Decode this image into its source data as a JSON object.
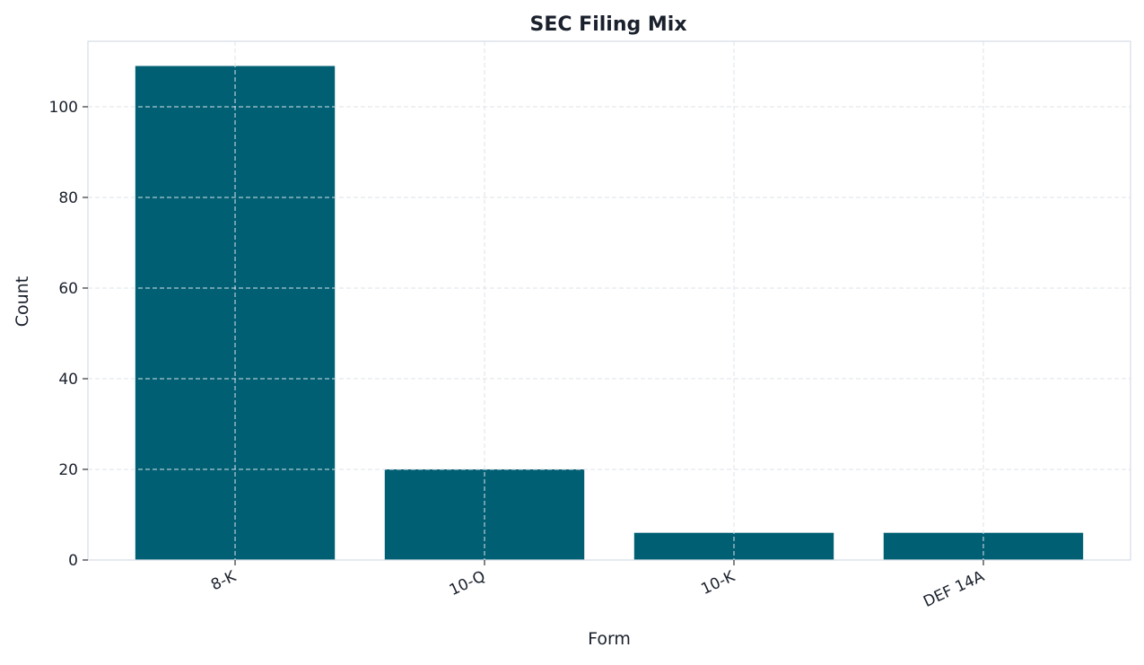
{
  "chart_data": {
    "type": "bar",
    "title": "SEC Filing Mix",
    "xlabel": "Form",
    "ylabel": "Count",
    "categories": [
      "8-K",
      "10-Q",
      "10-K",
      "DEF 14A"
    ],
    "values": [
      109,
      20,
      6,
      6
    ],
    "ylim": [
      0,
      114.45
    ],
    "yticks": [
      0,
      20,
      40,
      60,
      80,
      100
    ],
    "grid": true,
    "bar_color": "#005f73",
    "grid_color": "#dde3ea",
    "axis_color": "#d5dbe5"
  }
}
